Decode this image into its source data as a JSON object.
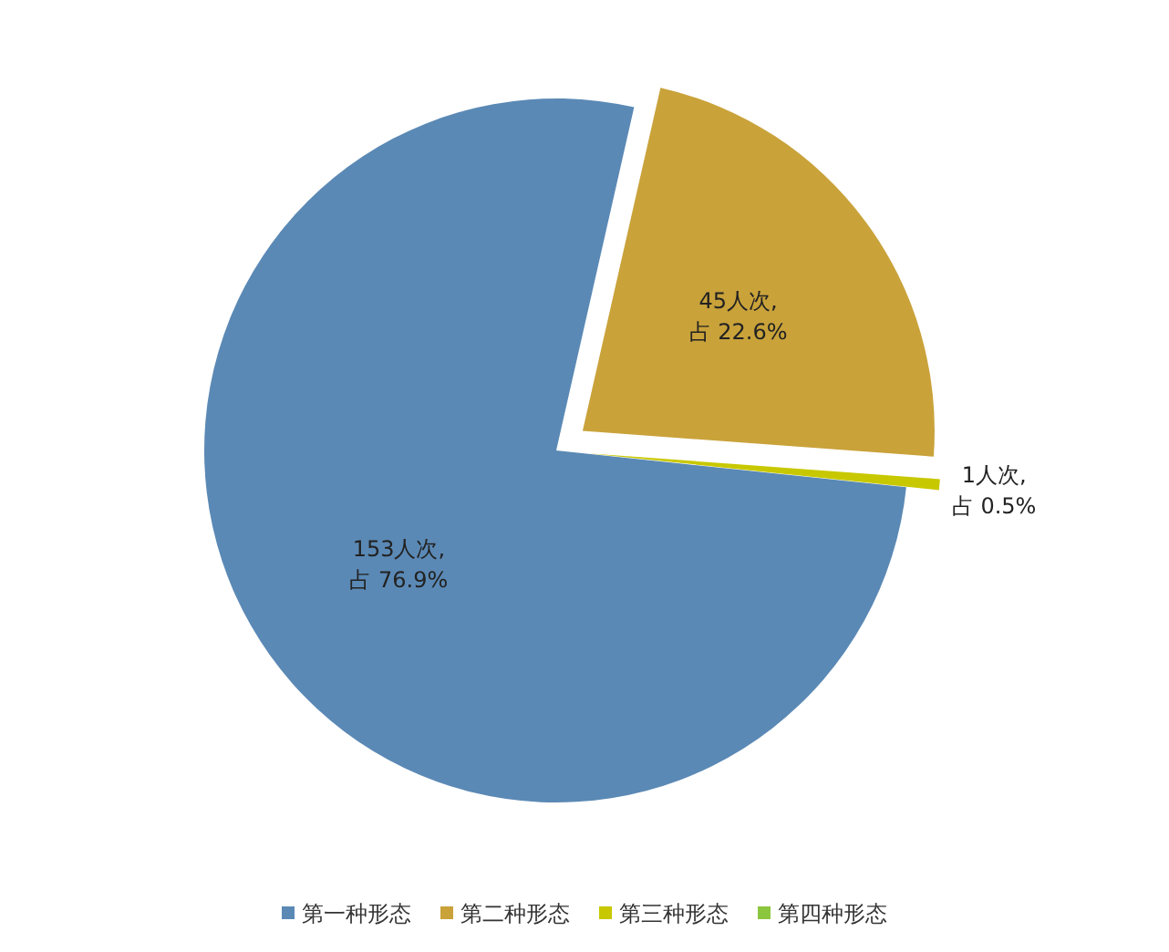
{
  "chart_data": {
    "type": "pie",
    "categories": [
      "第一种形态",
      "第二种形态",
      "第三种形态",
      "第四种形态"
    ],
    "values": [
      153,
      45,
      1,
      0
    ],
    "colors": [
      "#5b89b5",
      "#c9a23a",
      "#c8c800",
      "#8cc63f"
    ],
    "value_labels": [
      "153人次,\n占 76.9%",
      "45人次,\n占 22.6%",
      "1人次,\n占 0.5%",
      null
    ],
    "legend": "bottom"
  }
}
